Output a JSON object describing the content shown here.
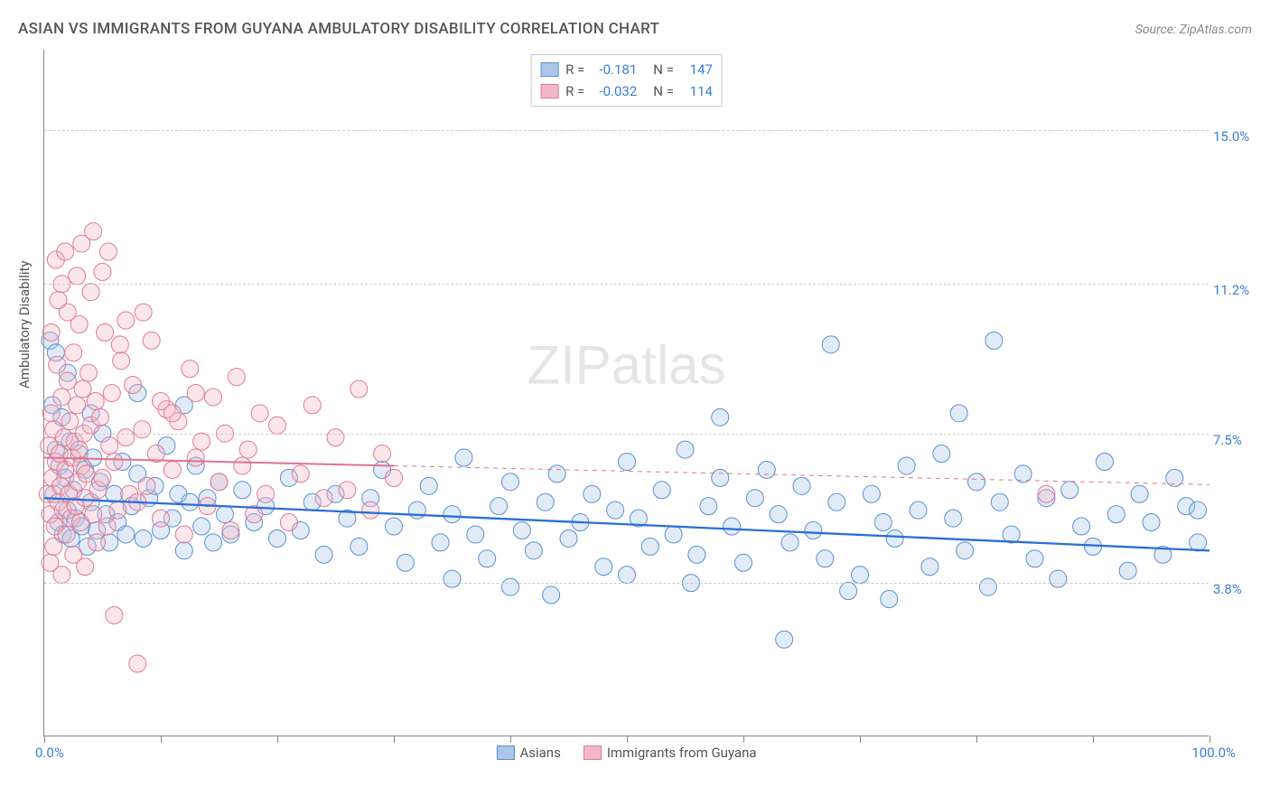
{
  "title": "ASIAN VS IMMIGRANTS FROM GUYANA AMBULATORY DISABILITY CORRELATION CHART",
  "source": "Source: ZipAtlas.com",
  "watermark_zip": "ZIP",
  "watermark_atlas": "atlas",
  "chart": {
    "type": "scatter",
    "xlim": [
      0,
      100
    ],
    "ylim": [
      0,
      17
    ],
    "y_gridlines": [
      3.8,
      7.5,
      11.2,
      15.0
    ],
    "y_tick_labels": [
      "3.8%",
      "7.5%",
      "11.2%",
      "15.0%"
    ],
    "x_ticks": [
      0,
      10,
      20,
      30,
      40,
      50,
      60,
      70,
      80,
      90,
      100
    ],
    "x_origin_label": "0.0%",
    "x_max_label": "100.0%",
    "ylabel": "Ambulatory Disability",
    "marker_radius": 9.5,
    "marker_opacity": 0.35,
    "background_color": "#ffffff",
    "grid_color": "#cccccc",
    "series": [
      {
        "name": "Asians",
        "fill_color": "#a9c7ea",
        "stroke_color": "#5b8fd0",
        "trend_color": "#2a6fd6",
        "trend_width": 2.3,
        "R": "-0.181",
        "N": "147",
        "trend": {
          "x1": 0,
          "y1": 5.9,
          "x2": 100,
          "y2": 4.6
        },
        "points": [
          [
            0.5,
            9.8
          ],
          [
            0.7,
            8.2
          ],
          [
            0.8,
            6.0
          ],
          [
            1.0,
            7.1
          ],
          [
            1.2,
            5.3
          ],
          [
            1.3,
            6.7
          ],
          [
            1.5,
            7.9
          ],
          [
            1.6,
            5.0
          ],
          [
            1.8,
            6.4
          ],
          [
            2.0,
            5.6
          ],
          [
            2.2,
            7.3
          ],
          [
            2.3,
            4.9
          ],
          [
            2.5,
            6.1
          ],
          [
            2.7,
            5.4
          ],
          [
            3.0,
            7.0
          ],
          [
            3.2,
            5.2
          ],
          [
            3.5,
            6.6
          ],
          [
            3.7,
            4.7
          ],
          [
            4.0,
            5.8
          ],
          [
            4.2,
            6.9
          ],
          [
            4.5,
            5.1
          ],
          [
            4.8,
            6.3
          ],
          [
            5.0,
            7.5
          ],
          [
            5.3,
            5.5
          ],
          [
            5.6,
            4.8
          ],
          [
            6.0,
            6.0
          ],
          [
            6.3,
            5.3
          ],
          [
            6.7,
            6.8
          ],
          [
            7.0,
            5.0
          ],
          [
            7.5,
            5.7
          ],
          [
            8.0,
            6.5
          ],
          [
            8.5,
            4.9
          ],
          [
            9.0,
            5.9
          ],
          [
            9.5,
            6.2
          ],
          [
            10.0,
            5.1
          ],
          [
            10.5,
            7.2
          ],
          [
            11.0,
            5.4
          ],
          [
            11.5,
            6.0
          ],
          [
            12.0,
            4.6
          ],
          [
            12.5,
            5.8
          ],
          [
            13.0,
            6.7
          ],
          [
            13.5,
            5.2
          ],
          [
            14.0,
            5.9
          ],
          [
            14.5,
            4.8
          ],
          [
            15.0,
            6.3
          ],
          [
            15.5,
            5.5
          ],
          [
            16.0,
            5.0
          ],
          [
            17.0,
            6.1
          ],
          [
            18.0,
            5.3
          ],
          [
            19.0,
            5.7
          ],
          [
            20.0,
            4.9
          ],
          [
            21.0,
            6.4
          ],
          [
            22.0,
            5.1
          ],
          [
            23.0,
            5.8
          ],
          [
            24.0,
            4.5
          ],
          [
            25.0,
            6.0
          ],
          [
            26.0,
            5.4
          ],
          [
            27.0,
            4.7
          ],
          [
            28.0,
            5.9
          ],
          [
            29.0,
            6.6
          ],
          [
            30.0,
            5.2
          ],
          [
            31.0,
            4.3
          ],
          [
            32.0,
            5.6
          ],
          [
            33.0,
            6.2
          ],
          [
            34.0,
            4.8
          ],
          [
            35.0,
            5.5
          ],
          [
            36.0,
            6.9
          ],
          [
            37.0,
            5.0
          ],
          [
            38.0,
            4.4
          ],
          [
            39.0,
            5.7
          ],
          [
            40.0,
            6.3
          ],
          [
            41.0,
            5.1
          ],
          [
            42.0,
            4.6
          ],
          [
            43.0,
            5.8
          ],
          [
            43.5,
            3.5
          ],
          [
            44.0,
            6.5
          ],
          [
            45.0,
            4.9
          ],
          [
            46.0,
            5.3
          ],
          [
            47.0,
            6.0
          ],
          [
            48.0,
            4.2
          ],
          [
            49.0,
            5.6
          ],
          [
            50.0,
            6.8
          ],
          [
            51.0,
            5.4
          ],
          [
            52.0,
            4.7
          ],
          [
            53.0,
            6.1
          ],
          [
            54.0,
            5.0
          ],
          [
            55.0,
            7.1
          ],
          [
            55.5,
            3.8
          ],
          [
            56.0,
            4.5
          ],
          [
            57.0,
            5.7
          ],
          [
            58.0,
            6.4
          ],
          [
            59.0,
            5.2
          ],
          [
            60.0,
            4.3
          ],
          [
            61.0,
            5.9
          ],
          [
            62.0,
            6.6
          ],
          [
            63.0,
            5.5
          ],
          [
            63.5,
            2.4
          ],
          [
            64.0,
            4.8
          ],
          [
            65.0,
            6.2
          ],
          [
            66.0,
            5.1
          ],
          [
            67.0,
            4.4
          ],
          [
            67.5,
            9.7
          ],
          [
            68.0,
            5.8
          ],
          [
            69.0,
            3.6
          ],
          [
            70.0,
            4.0
          ],
          [
            71.0,
            6.0
          ],
          [
            72.0,
            5.3
          ],
          [
            72.5,
            3.4
          ],
          [
            73.0,
            4.9
          ],
          [
            74.0,
            6.7
          ],
          [
            75.0,
            5.6
          ],
          [
            76.0,
            4.2
          ],
          [
            77.0,
            7.0
          ],
          [
            78.0,
            5.4
          ],
          [
            78.5,
            8.0
          ],
          [
            79.0,
            4.6
          ],
          [
            80.0,
            6.3
          ],
          [
            81.0,
            3.7
          ],
          [
            81.5,
            9.8
          ],
          [
            82.0,
            5.8
          ],
          [
            83.0,
            5.0
          ],
          [
            84.0,
            6.5
          ],
          [
            85.0,
            4.4
          ],
          [
            86.0,
            5.9
          ],
          [
            87.0,
            3.9
          ],
          [
            88.0,
            6.1
          ],
          [
            89.0,
            5.2
          ],
          [
            90.0,
            4.7
          ],
          [
            91.0,
            6.8
          ],
          [
            92.0,
            5.5
          ],
          [
            93.0,
            4.1
          ],
          [
            94.0,
            6.0
          ],
          [
            95.0,
            5.3
          ],
          [
            96.0,
            4.5
          ],
          [
            97.0,
            6.4
          ],
          [
            98.0,
            5.7
          ],
          [
            99.0,
            4.8
          ],
          [
            99.0,
            5.6
          ],
          [
            58.0,
            7.9
          ],
          [
            50.0,
            4.0
          ],
          [
            40.0,
            3.7
          ],
          [
            35.0,
            3.9
          ],
          [
            12.0,
            8.2
          ],
          [
            8.0,
            8.5
          ],
          [
            4.0,
            8.0
          ],
          [
            2.0,
            9.0
          ],
          [
            1.0,
            9.5
          ]
        ]
      },
      {
        "name": "Immigrants from Guyana",
        "fill_color": "#f3b8c6",
        "stroke_color": "#e07a93",
        "trend_color": "#e2738e",
        "trend_width": 2.0,
        "dash_extend_x": 100,
        "R": "-0.032",
        "N": "114",
        "trend": {
          "x1": 0,
          "y1": 6.9,
          "x2": 30,
          "y2": 6.7
        },
        "points": [
          [
            0.3,
            6.0
          ],
          [
            0.4,
            7.2
          ],
          [
            0.5,
            5.5
          ],
          [
            0.6,
            8.0
          ],
          [
            0.7,
            6.4
          ],
          [
            0.8,
            7.6
          ],
          [
            0.9,
            5.2
          ],
          [
            1.0,
            6.8
          ],
          [
            1.1,
            9.2
          ],
          [
            1.2,
            5.8
          ],
          [
            1.3,
            7.0
          ],
          [
            1.4,
            6.2
          ],
          [
            1.5,
            8.4
          ],
          [
            1.6,
            5.6
          ],
          [
            1.7,
            7.4
          ],
          [
            1.8,
            6.6
          ],
          [
            1.9,
            5.0
          ],
          [
            2.0,
            8.8
          ],
          [
            2.1,
            6.0
          ],
          [
            2.2,
            7.8
          ],
          [
            2.3,
            5.4
          ],
          [
            2.4,
            6.9
          ],
          [
            2.5,
            9.5
          ],
          [
            2.6,
            7.3
          ],
          [
            2.7,
            5.7
          ],
          [
            2.8,
            8.2
          ],
          [
            2.9,
            6.3
          ],
          [
            3.0,
            7.1
          ],
          [
            3.1,
            5.3
          ],
          [
            3.2,
            6.7
          ],
          [
            3.3,
            8.6
          ],
          [
            3.4,
            7.5
          ],
          [
            3.5,
            5.9
          ],
          [
            3.6,
            6.5
          ],
          [
            3.8,
            9.0
          ],
          [
            4.0,
            7.7
          ],
          [
            4.2,
            5.5
          ],
          [
            4.4,
            8.3
          ],
          [
            4.6,
            6.1
          ],
          [
            4.8,
            7.9
          ],
          [
            5.0,
            6.4
          ],
          [
            5.2,
            10.0
          ],
          [
            5.4,
            5.2
          ],
          [
            5.6,
            7.2
          ],
          [
            5.8,
            8.5
          ],
          [
            6.0,
            6.8
          ],
          [
            6.3,
            5.6
          ],
          [
            6.6,
            9.3
          ],
          [
            7.0,
            7.4
          ],
          [
            7.3,
            6.0
          ],
          [
            7.6,
            8.7
          ],
          [
            8.0,
            5.8
          ],
          [
            8.4,
            7.6
          ],
          [
            8.8,
            6.2
          ],
          [
            9.2,
            9.8
          ],
          [
            9.6,
            7.0
          ],
          [
            10.0,
            5.4
          ],
          [
            10.5,
            8.1
          ],
          [
            11.0,
            6.6
          ],
          [
            11.5,
            7.8
          ],
          [
            12.0,
            5.0
          ],
          [
            12.5,
            9.1
          ],
          [
            13.0,
            6.9
          ],
          [
            13.5,
            7.3
          ],
          [
            14.0,
            5.7
          ],
          [
            14.5,
            8.4
          ],
          [
            15.0,
            6.3
          ],
          [
            15.5,
            7.5
          ],
          [
            16.0,
            5.1
          ],
          [
            16.5,
            8.9
          ],
          [
            17.0,
            6.7
          ],
          [
            17.5,
            7.1
          ],
          [
            18.0,
            5.5
          ],
          [
            18.5,
            8.0
          ],
          [
            19.0,
            6.0
          ],
          [
            20.0,
            7.7
          ],
          [
            21.0,
            5.3
          ],
          [
            22.0,
            6.5
          ],
          [
            23.0,
            8.2
          ],
          [
            24.0,
            5.9
          ],
          [
            25.0,
            7.4
          ],
          [
            26.0,
            6.1
          ],
          [
            27.0,
            8.6
          ],
          [
            28.0,
            5.6
          ],
          [
            29.0,
            7.0
          ],
          [
            30.0,
            6.4
          ],
          [
            2.0,
            10.5
          ],
          [
            3.0,
            10.2
          ],
          [
            4.0,
            11.0
          ],
          [
            5.0,
            11.5
          ],
          [
            5.5,
            12.0
          ],
          [
            2.5,
            4.5
          ],
          [
            3.5,
            4.2
          ],
          [
            4.5,
            4.8
          ],
          [
            1.5,
            4.0
          ],
          [
            6.0,
            3.0
          ],
          [
            8.0,
            1.8
          ],
          [
            10.0,
            8.3
          ],
          [
            11.0,
            8.0
          ],
          [
            13.0,
            8.5
          ],
          [
            1.0,
            11.8
          ],
          [
            1.5,
            11.2
          ],
          [
            7.0,
            10.3
          ],
          [
            8.5,
            10.5
          ],
          [
            3.2,
            12.2
          ],
          [
            0.5,
            4.3
          ],
          [
            0.8,
            4.7
          ],
          [
            1.2,
            10.8
          ],
          [
            6.5,
            9.7
          ],
          [
            2.8,
            11.4
          ],
          [
            86.0,
            6.0
          ],
          [
            4.2,
            12.5
          ],
          [
            1.8,
            12.0
          ],
          [
            0.6,
            10.0
          ]
        ]
      }
    ],
    "legend_bottom": [
      "Asians",
      "Immigrants from Guyana"
    ]
  }
}
